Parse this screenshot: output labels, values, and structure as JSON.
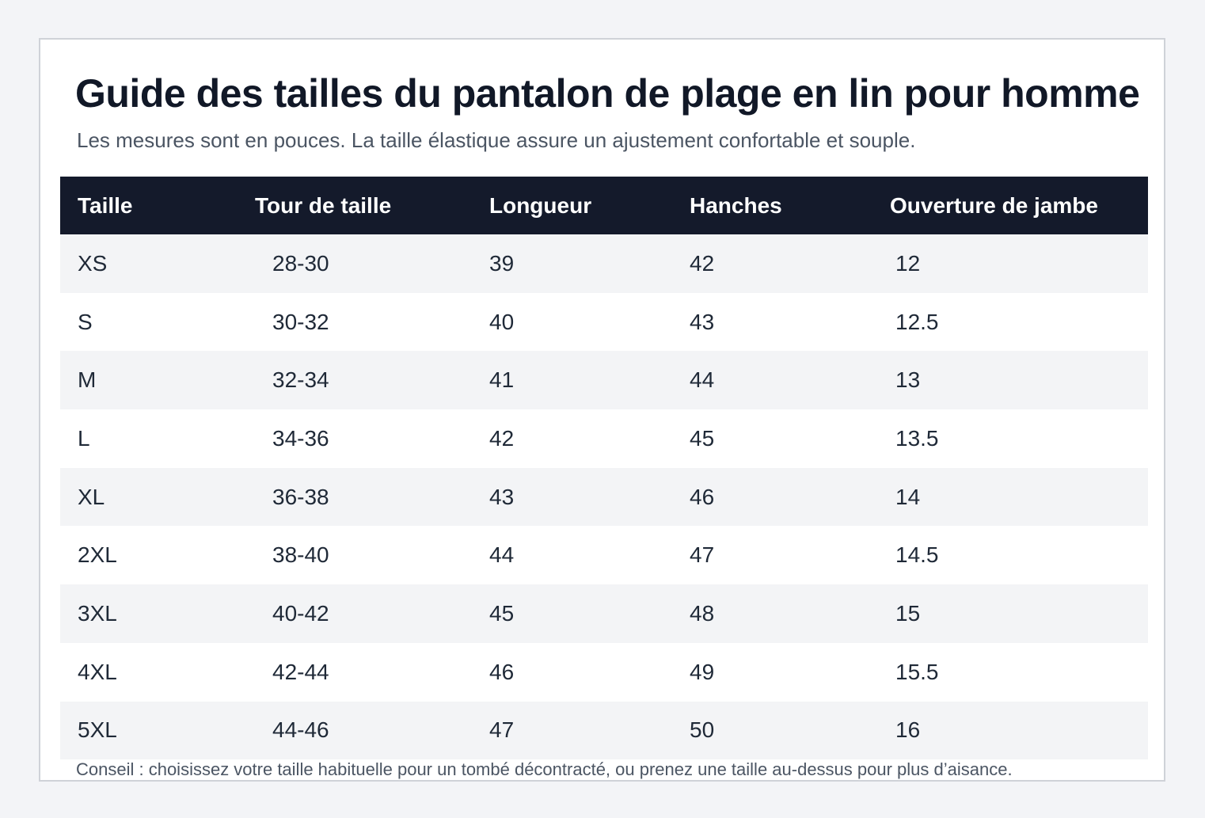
{
  "title": "Guide des tailles du pantalon de plage en lin pour homme",
  "subtitle": "Les mesures sont en pouces. La taille élastique assure un ajustement confortable et souple.",
  "table": {
    "headers": [
      "Taille",
      "Tour de taille",
      "Longueur",
      "Hanches",
      "Ouverture de jambe"
    ],
    "rows": [
      [
        "XS",
        "28-30",
        "39",
        "42",
        "12"
      ],
      [
        "S",
        "30-32",
        "40",
        "43",
        "12.5"
      ],
      [
        "M",
        "32-34",
        "41",
        "44",
        "13"
      ],
      [
        "L",
        "34-36",
        "42",
        "45",
        "13.5"
      ],
      [
        "XL",
        "36-38",
        "43",
        "46",
        "14"
      ],
      [
        "2XL",
        "38-40",
        "44",
        "47",
        "14.5"
      ],
      [
        "3XL",
        "40-42",
        "45",
        "48",
        "15"
      ],
      [
        "4XL",
        "42-44",
        "46",
        "49",
        "15.5"
      ],
      [
        "5XL",
        "44-46",
        "47",
        "50",
        "16"
      ]
    ]
  },
  "footnote": "Conseil : choisissez votre taille habituelle pour un tombé décontracté, ou prenez une taille au-dessus pour plus d’aisance.",
  "colors": {
    "header_bg": "#141a2b",
    "stripe_bg": "#f3f4f6",
    "title_text": "#111827",
    "muted_text": "#4b5563"
  }
}
